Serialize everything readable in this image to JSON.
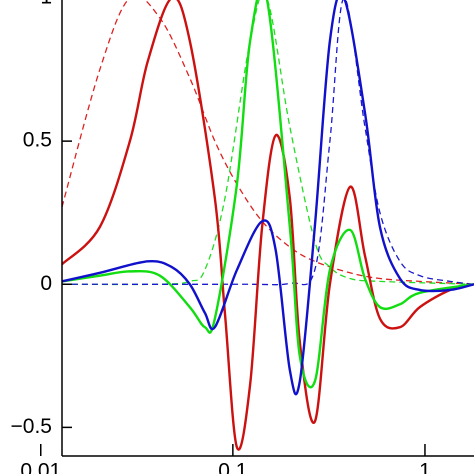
{
  "chart_data": {
    "type": "line",
    "xscale": "log",
    "xlim": [
      0.0129,
      1.8
    ],
    "ylim": [
      -0.6,
      1.0
    ],
    "xticks": [
      0.01,
      0.1,
      1
    ],
    "yticks": [
      {
        "value": -0.5,
        "label": "−0.5"
      },
      0,
      0.5,
      1
    ],
    "series": [
      {
        "color": "#dd2222",
        "dashed": true,
        "x": [
          0.0129,
          0.0203,
          0.0291,
          0.0417,
          0.0597,
          0.0806,
          0.105,
          0.142,
          0.198,
          0.267,
          0.407,
          0.583,
          0.94,
          1.8
        ],
        "values": [
          0.27,
          0.75,
          1,
          0.93,
          0.72,
          0.5,
          0.35,
          0.22,
          0.13,
          0.08,
          0.04,
          0.02,
          0.01,
          0
        ]
      },
      {
        "color": "#22dd22",
        "dashed": true,
        "x": [
          0.0129,
          0.0417,
          0.0597,
          0.0715,
          0.0909,
          0.123,
          0.15,
          0.198,
          0.267,
          0.32,
          0.407,
          0.583,
          1.8
        ],
        "values": [
          0,
          0,
          0.01,
          0.05,
          0.3,
          0.85,
          1,
          0.55,
          0.15,
          0.06,
          0.02,
          0.01,
          0
        ]
      },
      {
        "color": "#1a1acc",
        "dashed": true,
        "x": [
          0.0129,
          0.105,
          0.198,
          0.267,
          0.32,
          0.379,
          0.487,
          0.583,
          0.741,
          0.94,
          1.35,
          1.8
        ],
        "values": [
          0,
          0,
          0.003,
          0.05,
          0.5,
          1,
          0.55,
          0.25,
          0.08,
          0.03,
          0.01,
          0
        ]
      },
      {
        "color": "#cc1111",
        "dashed": false,
        "x": [
          0.0129,
          0.0203,
          0.0291,
          0.0361,
          0.0481,
          0.0597,
          0.0806,
          0.0909,
          0.105,
          0.123,
          0.142,
          0.167,
          0.198,
          0.223,
          0.267,
          0.32,
          0.407,
          0.487,
          0.583,
          0.741,
          0.94,
          1.35,
          1.8
        ],
        "values": [
          0.07,
          0.2,
          0.5,
          0.78,
          1,
          0.85,
          0.3,
          -0.1,
          -0.57,
          -0.35,
          0.2,
          0.52,
          0.3,
          -0.2,
          -0.48,
          0,
          0.34,
          0.1,
          -0.12,
          -0.15,
          -0.08,
          -0.02,
          0
        ]
      },
      {
        "color": "#11dd11",
        "dashed": false,
        "x": [
          0.0129,
          0.0203,
          0.0291,
          0.0417,
          0.0597,
          0.0715,
          0.0806,
          0.105,
          0.123,
          0.15,
          0.198,
          0.223,
          0.267,
          0.32,
          0.407,
          0.487,
          0.583,
          0.741,
          0.94,
          1.8
        ],
        "values": [
          0.01,
          0.03,
          0.045,
          0.03,
          -0.08,
          -0.15,
          -0.12,
          0.35,
          0.85,
          1,
          0.2,
          -0.25,
          -0.34,
          0.05,
          0.19,
          0.02,
          -0.08,
          -0.07,
          -0.03,
          0
        ]
      },
      {
        "color": "#1111cc",
        "dashed": false,
        "x": [
          0.0129,
          0.0203,
          0.0361,
          0.0481,
          0.0597,
          0.0715,
          0.0806,
          0.105,
          0.142,
          0.167,
          0.198,
          0.223,
          0.267,
          0.32,
          0.379,
          0.487,
          0.583,
          0.741,
          0.94,
          1.35,
          1.8
        ],
        "values": [
          0.01,
          0.04,
          0.08,
          0.06,
          0,
          -0.1,
          -0.15,
          0.05,
          0.22,
          0.12,
          -0.3,
          -0.34,
          0.2,
          0.85,
          1,
          0.6,
          0.2,
          0.02,
          -0.02,
          -0.02,
          0
        ]
      }
    ]
  }
}
